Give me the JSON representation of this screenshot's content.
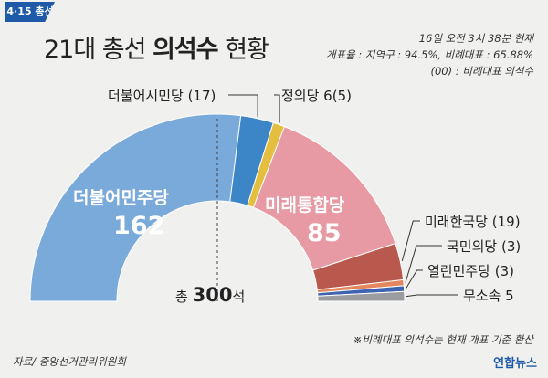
{
  "header": {
    "tag": "4·15 총선",
    "title_prefix": "21대 총선",
    "title_bold": "의석수",
    "title_suffix": "현황"
  },
  "notes": {
    "time": "16일 오전 3시 38분 현재",
    "rate": "개표율 : 지역구 : 94.5%, 비례대표 : 65.88%",
    "legend": "(00) : 비례대표 의석수"
  },
  "chart_data": {
    "type": "pie",
    "subtype": "half-donut",
    "total_label": "총",
    "total_value": 300,
    "total_unit": "석",
    "segments": [
      {
        "name": "더불어민주당",
        "value": 162,
        "color": "#7aaad9"
      },
      {
        "name": "더불어시민당",
        "value": 17,
        "color": "#3c86c8"
      },
      {
        "name": "정의당",
        "value": 6,
        "color": "#e3be3f"
      },
      {
        "name": "미래통합당",
        "value": 85,
        "color": "#e79aa3"
      },
      {
        "name": "미래한국당",
        "value": 19,
        "color": "#b9584c"
      },
      {
        "name": "국민의당",
        "value": 3,
        "color": "#e4875e"
      },
      {
        "name": "열린민주당",
        "value": 3,
        "color": "#3d63b1"
      },
      {
        "name": "무소속",
        "value": 5,
        "color": "#9a9ca0"
      }
    ]
  },
  "labels": {
    "minjoo": "더불어민주당",
    "minjoo_value": "162",
    "tonghap": "미래통합당",
    "tonghap_value": "85",
    "siminn": "더불어시민당 (17)",
    "jeongui": "정의당  6(5)",
    "hanguk": "미래한국당 (19)",
    "kukmin": "국민의당  (3)",
    "yeolin": "열린민주당 (3)",
    "musosok": "무소속  5"
  },
  "footer": {
    "note": "※비례대표 의석수는 현재 개표 기준 환산",
    "source": "자료/ 중앙선거관리위원회",
    "logo": "연합뉴스"
  }
}
